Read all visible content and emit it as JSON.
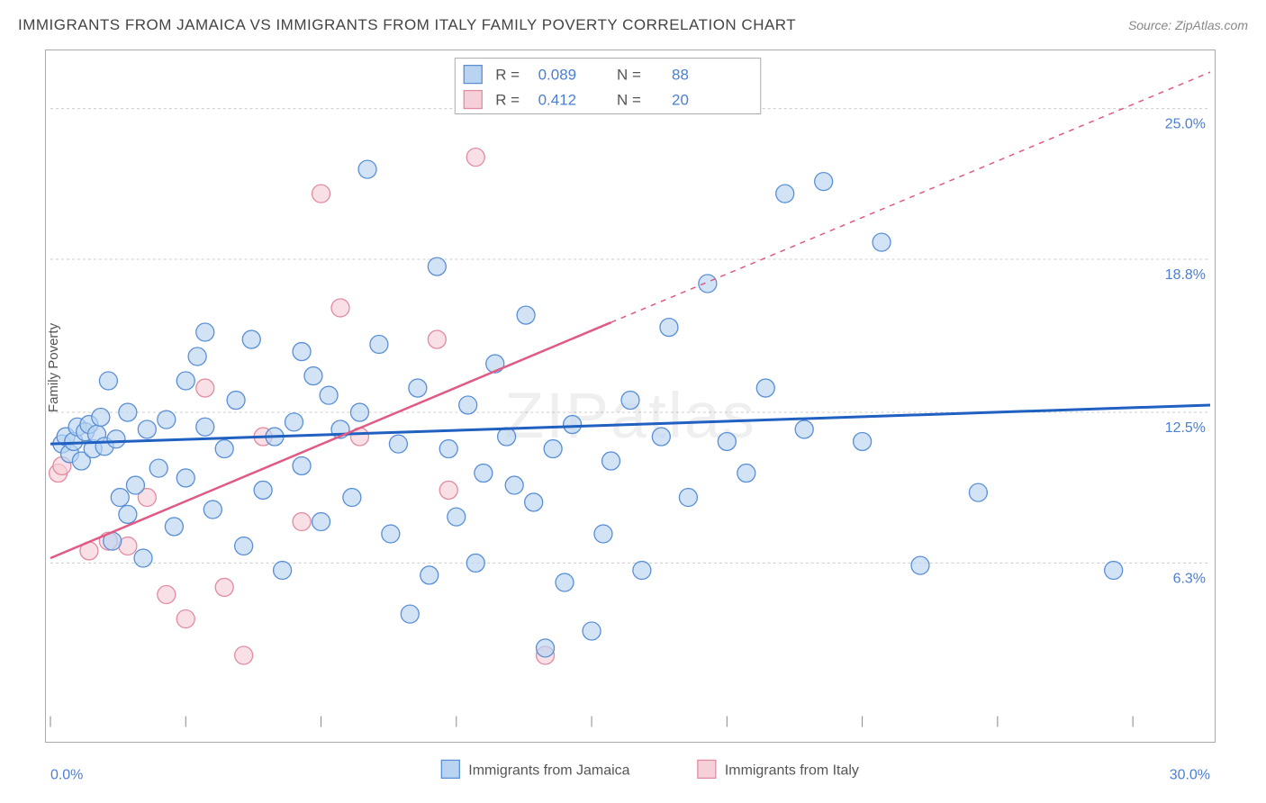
{
  "header": {
    "title": "IMMIGRANTS FROM JAMAICA VS IMMIGRANTS FROM ITALY FAMILY POVERTY CORRELATION CHART",
    "source_label": "Source: ",
    "source_name": "ZipAtlas.com"
  },
  "watermark": "ZIPatlas",
  "axes": {
    "y_label": "Family Poverty",
    "x_min": 0.0,
    "x_max": 30.0,
    "y_min": 0.0,
    "y_max": 27.0,
    "y_ticks": [
      {
        "v": 6.3,
        "label": "6.3%"
      },
      {
        "v": 12.5,
        "label": "12.5%"
      },
      {
        "v": 18.8,
        "label": "18.8%"
      },
      {
        "v": 25.0,
        "label": "25.0%"
      }
    ],
    "x_tick_positions": [
      0,
      3.5,
      7.0,
      10.5,
      14.0,
      17.5,
      21.0,
      24.5,
      28.0
    ],
    "x_left_label": "0.0%",
    "x_right_label": "30.0%"
  },
  "series": {
    "jamaica": {
      "label": "Immigrants from Jamaica",
      "r": "0.089",
      "n": "88",
      "fill": "#b8d4f0",
      "stroke": "#5a8fd6",
      "line_color": "#2060c0",
      "marker_radius": 10,
      "trend": {
        "x1": 0,
        "y1": 11.2,
        "x2": 30,
        "y2": 12.8
      },
      "points": [
        [
          0.3,
          11.2
        ],
        [
          0.4,
          11.5
        ],
        [
          0.5,
          10.8
        ],
        [
          0.6,
          11.3
        ],
        [
          0.7,
          11.9
        ],
        [
          0.8,
          10.5
        ],
        [
          0.9,
          11.7
        ],
        [
          1.0,
          12.0
        ],
        [
          1.1,
          11.0
        ],
        [
          1.2,
          11.6
        ],
        [
          1.3,
          12.3
        ],
        [
          1.4,
          11.1
        ],
        [
          1.5,
          13.8
        ],
        [
          1.6,
          7.2
        ],
        [
          1.7,
          11.4
        ],
        [
          1.8,
          9.0
        ],
        [
          2.0,
          8.3
        ],
        [
          2.2,
          9.5
        ],
        [
          2.4,
          6.5
        ],
        [
          2.5,
          11.8
        ],
        [
          2.8,
          10.2
        ],
        [
          3.0,
          12.2
        ],
        [
          3.2,
          7.8
        ],
        [
          3.5,
          9.8
        ],
        [
          3.8,
          14.8
        ],
        [
          4.0,
          15.8
        ],
        [
          4.2,
          8.5
        ],
        [
          4.5,
          11.0
        ],
        [
          4.8,
          13.0
        ],
        [
          5.0,
          7.0
        ],
        [
          5.2,
          15.5
        ],
        [
          5.5,
          9.3
        ],
        [
          5.8,
          11.5
        ],
        [
          6.0,
          6.0
        ],
        [
          6.3,
          12.1
        ],
        [
          6.5,
          10.3
        ],
        [
          6.8,
          14.0
        ],
        [
          7.0,
          8.0
        ],
        [
          7.2,
          13.2
        ],
        [
          7.5,
          11.8
        ],
        [
          7.8,
          9.0
        ],
        [
          8.0,
          12.5
        ],
        [
          8.2,
          22.5
        ],
        [
          8.5,
          15.3
        ],
        [
          8.8,
          7.5
        ],
        [
          9.0,
          11.2
        ],
        [
          9.3,
          4.2
        ],
        [
          9.5,
          13.5
        ],
        [
          9.8,
          5.8
        ],
        [
          10.0,
          18.5
        ],
        [
          10.3,
          11.0
        ],
        [
          10.5,
          8.2
        ],
        [
          10.8,
          12.8
        ],
        [
          11.0,
          6.3
        ],
        [
          11.2,
          10.0
        ],
        [
          11.5,
          14.5
        ],
        [
          11.8,
          11.5
        ],
        [
          12.0,
          9.5
        ],
        [
          12.3,
          16.5
        ],
        [
          12.5,
          8.8
        ],
        [
          12.8,
          2.8
        ],
        [
          13.0,
          11.0
        ],
        [
          13.3,
          5.5
        ],
        [
          13.5,
          12.0
        ],
        [
          14.0,
          3.5
        ],
        [
          14.3,
          7.5
        ],
        [
          14.5,
          10.5
        ],
        [
          15.0,
          13.0
        ],
        [
          15.3,
          6.0
        ],
        [
          15.8,
          11.5
        ],
        [
          16.0,
          16.0
        ],
        [
          16.5,
          9.0
        ],
        [
          17.0,
          17.8
        ],
        [
          17.5,
          11.3
        ],
        [
          18.0,
          10.0
        ],
        [
          18.5,
          13.5
        ],
        [
          19.0,
          21.5
        ],
        [
          19.5,
          11.8
        ],
        [
          20.0,
          22.0
        ],
        [
          21.0,
          11.3
        ],
        [
          21.5,
          19.5
        ],
        [
          22.5,
          6.2
        ],
        [
          24.0,
          9.2
        ],
        [
          27.5,
          6.0
        ],
        [
          6.5,
          15.0
        ],
        [
          4.0,
          11.9
        ],
        [
          2.0,
          12.5
        ],
        [
          3.5,
          13.8
        ]
      ]
    },
    "italy": {
      "label": "Immigrants from Italy",
      "r": "0.412",
      "n": "20",
      "fill": "#f5d0d8",
      "stroke": "#e38ba0",
      "line_color": "#e05a85",
      "marker_radius": 10,
      "trend_solid": {
        "x1": 0,
        "y1": 6.5,
        "x2": 14.5,
        "y2": 16.2
      },
      "trend_dash": {
        "x1": 14.5,
        "y1": 16.2,
        "x2": 30,
        "y2": 26.5
      },
      "points": [
        [
          0.2,
          10.0
        ],
        [
          0.3,
          10.3
        ],
        [
          1.0,
          6.8
        ],
        [
          1.5,
          7.2
        ],
        [
          2.0,
          7.0
        ],
        [
          2.5,
          9.0
        ],
        [
          3.0,
          5.0
        ],
        [
          3.5,
          4.0
        ],
        [
          4.0,
          13.5
        ],
        [
          4.5,
          5.3
        ],
        [
          5.0,
          2.5
        ],
        [
          5.5,
          11.5
        ],
        [
          6.5,
          8.0
        ],
        [
          7.0,
          21.5
        ],
        [
          7.5,
          16.8
        ],
        [
          8.0,
          11.5
        ],
        [
          10.0,
          15.5
        ],
        [
          10.3,
          9.3
        ],
        [
          11.0,
          23.0
        ],
        [
          12.8,
          2.5
        ]
      ]
    }
  },
  "legend": {
    "r_label": "R =",
    "n_label": "N ="
  },
  "style": {
    "background": "#ffffff",
    "grid_color": "#cccccc",
    "text_color": "#555555",
    "accent_color": "#4a7fd4",
    "border_color": "#aaaaaa"
  }
}
